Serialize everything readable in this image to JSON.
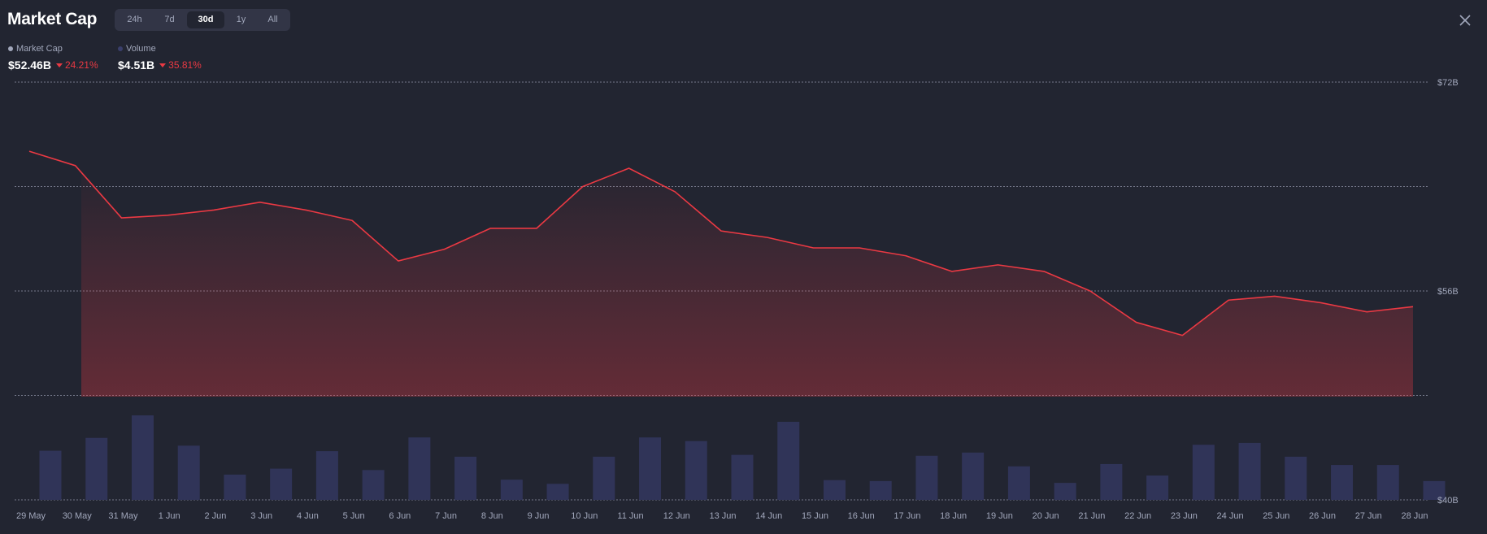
{
  "header": {
    "title": "Market Cap",
    "tabs": [
      {
        "label": "24h",
        "active": false
      },
      {
        "label": "7d",
        "active": false
      },
      {
        "label": "30d",
        "active": true
      },
      {
        "label": "1y",
        "active": false
      },
      {
        "label": "All",
        "active": false
      }
    ],
    "close_icon": "close-icon"
  },
  "legend": {
    "market_cap": {
      "label": "Market Cap",
      "value": "$52.46B",
      "change": "24.21%",
      "dot_color": "#a1a7bb"
    },
    "volume": {
      "label": "Volume",
      "value": "$4.51B",
      "change": "35.81%",
      "dot_color": "#3a3f6b"
    }
  },
  "colors": {
    "background": "#222531",
    "line": "#ea3943",
    "volume_bar": "#303458",
    "grid": "#8b8fa3",
    "text_muted": "#a1a7bb",
    "negative": "#ea3943"
  },
  "chart_data": {
    "type": "line",
    "x": [
      "29 May",
      "30 May",
      "31 May",
      "1 Jun",
      "2 Jun",
      "3 Jun",
      "4 Jun",
      "5 Jun",
      "6 Jun",
      "7 Jun",
      "8 Jun",
      "9 Jun",
      "10 Jun",
      "11 Jun",
      "12 Jun",
      "13 Jun",
      "14 Jun",
      "15 Jun",
      "16 Jun",
      "17 Jun",
      "18 Jun",
      "19 Jun",
      "20 Jun",
      "21 Jun",
      "22 Jun",
      "23 Jun",
      "24 Jun",
      "25 Jun",
      "26 Jun",
      "27 Jun",
      "28 Jun"
    ],
    "series": [
      {
        "name": "Market Cap",
        "values": [
          66.7,
          65.6,
          61.6,
          61.8,
          62.2,
          62.8,
          62.2,
          61.4,
          58.3,
          59.2,
          60.8,
          60.8,
          64.0,
          65.4,
          63.6,
          60.6,
          60.1,
          59.3,
          59.3,
          58.7,
          57.5,
          58.0,
          57.5,
          56.0,
          53.6,
          52.6,
          55.3,
          55.6,
          55.1,
          54.4,
          54.8
        ]
      },
      {
        "name": "Volume",
        "values": [
          10.7,
          13.5,
          18.4,
          11.8,
          5.5,
          6.8,
          10.6,
          6.5,
          13.6,
          9.4,
          4.4,
          3.5,
          9.4,
          13.6,
          12.8,
          9.8,
          17.0,
          4.3,
          4.1,
          9.6,
          10.3,
          7.3,
          3.7,
          7.8,
          5.3,
          12.0,
          12.4,
          9.4,
          7.6,
          7.6,
          4.1
        ]
      }
    ],
    "y_ticks": [
      "$72B",
      "$56B",
      "$40B"
    ],
    "ylim": [
      40,
      72
    ],
    "grid": true,
    "legend_position": "top-left"
  }
}
